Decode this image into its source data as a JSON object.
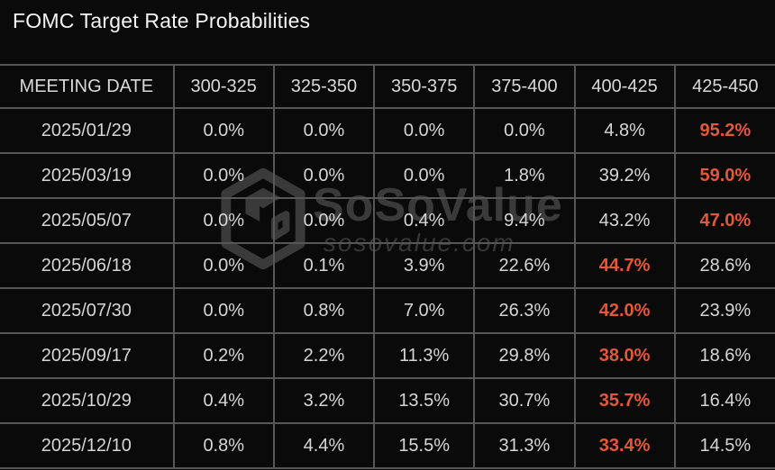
{
  "title": "FOMC Target Rate Probabilities",
  "watermark": {
    "brand": "SoSoValue",
    "domain": "sosovalue.com"
  },
  "colors": {
    "background": "#0a0a0a",
    "grid_border": "#575757",
    "cell_text": "#d6d6d6",
    "highlight_text": "#e4573a",
    "watermark_text": "#3a3a3a"
  },
  "chart_data": {
    "type": "table",
    "title": "FOMC Target Rate Probabilities",
    "columns": [
      "MEETING DATE",
      "300-325",
      "325-350",
      "350-375",
      "375-400",
      "400-425",
      "425-450"
    ],
    "rows": [
      {
        "date": "2025/01/29",
        "values": [
          "0.0%",
          "0.0%",
          "0.0%",
          "0.0%",
          "4.8%",
          "95.2%"
        ],
        "highlight_index": 5
      },
      {
        "date": "2025/03/19",
        "values": [
          "0.0%",
          "0.0%",
          "0.0%",
          "1.8%",
          "39.2%",
          "59.0%"
        ],
        "highlight_index": 5
      },
      {
        "date": "2025/05/07",
        "values": [
          "0.0%",
          "0.0%",
          "0.4%",
          "9.4%",
          "43.2%",
          "47.0%"
        ],
        "highlight_index": 5
      },
      {
        "date": "2025/06/18",
        "values": [
          "0.0%",
          "0.1%",
          "3.9%",
          "22.6%",
          "44.7%",
          "28.6%"
        ],
        "highlight_index": 4
      },
      {
        "date": "2025/07/30",
        "values": [
          "0.0%",
          "0.8%",
          "7.0%",
          "26.3%",
          "42.0%",
          "23.9%"
        ],
        "highlight_index": 4
      },
      {
        "date": "2025/09/17",
        "values": [
          "0.2%",
          "2.2%",
          "11.3%",
          "29.8%",
          "38.0%",
          "18.6%"
        ],
        "highlight_index": 4
      },
      {
        "date": "2025/10/29",
        "values": [
          "0.4%",
          "3.2%",
          "13.5%",
          "30.7%",
          "35.7%",
          "16.4%"
        ],
        "highlight_index": 4
      },
      {
        "date": "2025/12/10",
        "values": [
          "0.8%",
          "4.4%",
          "15.5%",
          "31.3%",
          "33.4%",
          "14.5%"
        ],
        "highlight_index": 4
      }
    ]
  }
}
